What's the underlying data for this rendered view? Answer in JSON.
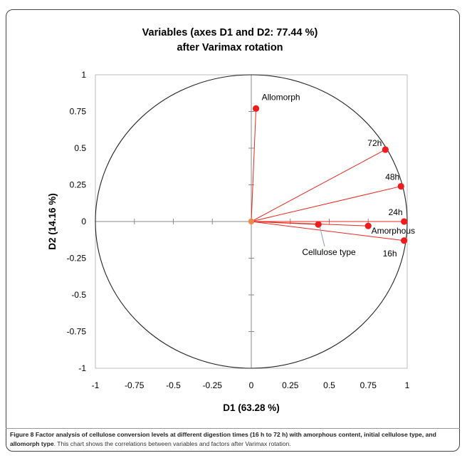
{
  "chart_data": {
    "type": "scatter",
    "title": "Variables (axes D1 and D2: 77.44 %)",
    "subtitle": "after Varimax rotation",
    "xlabel": "D1 (63.28 %)",
    "ylabel": "D2 (14.16 %)",
    "xlim": [
      -1,
      1
    ],
    "ylim": [
      -1,
      1
    ],
    "x_ticks": [
      "-1",
      "-0.75",
      "-0.5",
      "-0.25",
      "0",
      "0.25",
      "0.5",
      "0.75",
      "1"
    ],
    "y_ticks": [
      "1",
      "0.75",
      "0.5",
      "0.25",
      "0",
      "-0.25",
      "-0.5",
      "-0.75",
      "-1"
    ],
    "unit_circle": true,
    "grid": false,
    "legend": "none",
    "colors": {
      "vector": "#e8281e",
      "point": "#ee1c1c",
      "origin": "#f08a4b",
      "circle": "#222222"
    },
    "points": [
      {
        "label": "Allomorph",
        "x": 0.03,
        "y": 0.77
      },
      {
        "label": "72h",
        "x": 0.86,
        "y": 0.49
      },
      {
        "label": "48h",
        "x": 0.96,
        "y": 0.24
      },
      {
        "label": "24h",
        "x": 0.98,
        "y": 0.0
      },
      {
        "label": "Amorphous",
        "x": 0.75,
        "y": -0.03
      },
      {
        "label": "Cellulose type",
        "x": 0.43,
        "y": -0.02
      },
      {
        "label": "16h",
        "x": 0.98,
        "y": -0.13
      }
    ]
  },
  "caption": {
    "label": "Figure 8",
    "bold_text": "Factor analysis of cellulose conversion levels at different digestion times (16 h to 72 h) with amorphous content, initial cellulose type, and allomorph type",
    "rest_text": ". This chart shows the correlations between variables and factors after Varimax rotation."
  }
}
